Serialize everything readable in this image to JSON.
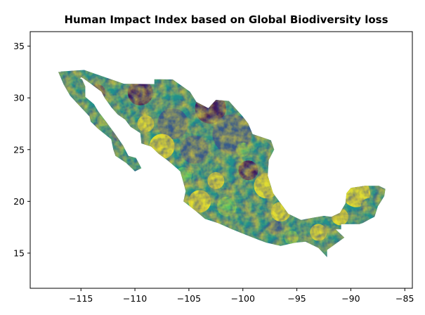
{
  "chart_data": {
    "type": "heatmap",
    "title": "Human Impact Index based on Global Biodiversity loss",
    "xlabel": "",
    "ylabel": "",
    "xlim": [
      -119.7,
      -84.3
    ],
    "ylim": [
      11.6,
      36.4
    ],
    "x_ticks": [
      -115,
      -110,
      -105,
      -100,
      -95,
      -90,
      -85
    ],
    "x_tick_labels": [
      "−115",
      "−110",
      "−105",
      "−100",
      "−95",
      "−90",
      "−85"
    ],
    "y_ticks": [
      15,
      20,
      25,
      30,
      35
    ],
    "y_tick_labels": [
      "15",
      "20",
      "25",
      "30",
      "35"
    ],
    "colormap": "viridis",
    "colormap_stops": [
      "#440154",
      "#3b528b",
      "#21918c",
      "#5ec962",
      "#fde725"
    ],
    "region": "Mexico",
    "grid": false,
    "legend": "none"
  }
}
